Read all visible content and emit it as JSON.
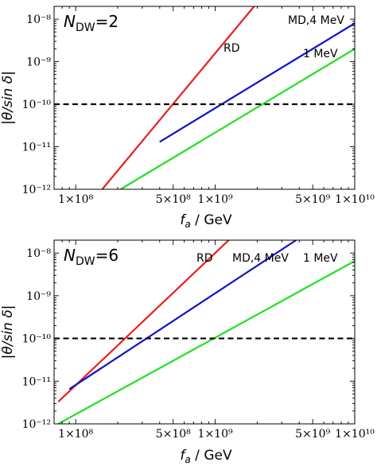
{
  "chart_data": [
    {
      "type": "line",
      "panel_label": {
        "prefix": "N",
        "subscript": "DW",
        "suffix": "=2"
      },
      "xlabel": {
        "main": "f",
        "sub": "a",
        "rest": " / GeV"
      },
      "ylabel": "|θ/sin δ|",
      "x_scale": "log",
      "y_scale": "log",
      "xlim": [
        70000000.0,
        10000000000.0
      ],
      "ylim": [
        1e-12,
        2e-08
      ],
      "x_ticks": [
        {
          "value": 100000000.0,
          "label": "1×10⁸"
        },
        {
          "value": 500000000.0,
          "label": "5×10⁸"
        },
        {
          "value": 1000000000.0,
          "label": "1×10⁹"
        },
        {
          "value": 5000000000.0,
          "label": "5×10⁹"
        },
        {
          "value": 10000000000.0,
          "label": "1×10¹⁰"
        }
      ],
      "y_ticks": [
        {
          "value": 1e-12,
          "label": "10⁻¹²"
        },
        {
          "value": 1e-11,
          "label": "10⁻¹¹"
        },
        {
          "value": 1e-10,
          "label": "10⁻¹⁰"
        },
        {
          "value": 1e-09,
          "label": "10⁻⁹"
        },
        {
          "value": 1e-08,
          "label": "10⁻⁸"
        }
      ],
      "series": [
        {
          "name": "RD",
          "color": "#e8201d",
          "x": [
            155000000.0,
            1900000000.0
          ],
          "y": [
            1e-12,
            2e-08
          ]
        },
        {
          "name": "MD,4 MeV",
          "color": "#1212c8",
          "x": [
            400000000.0,
            10000000000.0
          ],
          "y": [
            1.3e-11,
            8e-09
          ]
        },
        {
          "name": "1 MeV",
          "color": "#22e022",
          "x": [
            210000000.0,
            10000000000.0
          ],
          "y": [
            1e-12,
            2e-09
          ]
        }
      ],
      "reference_line": {
        "y": 1e-10,
        "style": "dashed",
        "color": "#000000"
      },
      "annotations": [
        {
          "text": "RD",
          "series": "RD"
        },
        {
          "text": "MD,4 MeV",
          "series": "MD,4 MeV"
        },
        {
          "text": "1 MeV",
          "series": "1 MeV"
        }
      ]
    },
    {
      "type": "line",
      "panel_label": {
        "prefix": "N",
        "subscript": "DW",
        "suffix": "=6"
      },
      "xlabel": {
        "main": "f",
        "sub": "a",
        "rest": " / GeV"
      },
      "ylabel": "|θ/sin δ|",
      "x_scale": "log",
      "y_scale": "log",
      "xlim": [
        70000000.0,
        10000000000.0
      ],
      "ylim": [
        1e-12,
        2e-08
      ],
      "x_ticks": [
        {
          "value": 100000000.0,
          "label": "1×10⁸"
        },
        {
          "value": 500000000.0,
          "label": "5×10⁸"
        },
        {
          "value": 1000000000.0,
          "label": "1×10⁹"
        },
        {
          "value": 5000000000.0,
          "label": "5×10⁹"
        },
        {
          "value": 10000000000.0,
          "label": "1×10¹⁰"
        }
      ],
      "y_ticks": [
        {
          "value": 1e-12,
          "label": "10⁻¹²"
        },
        {
          "value": 1e-11,
          "label": "10⁻¹¹"
        },
        {
          "value": 1e-10,
          "label": "10⁻¹⁰"
        },
        {
          "value": 1e-09,
          "label": "10⁻⁹"
        },
        {
          "value": 1e-08,
          "label": "10⁻⁸"
        }
      ],
      "series": [
        {
          "name": "RD",
          "color": "#e8201d",
          "x": [
            75000000.0,
            1250000000.0
          ],
          "y": [
            3.3e-12,
            2e-08
          ]
        },
        {
          "name": "MD,4 MeV",
          "color": "#1212c8",
          "x": [
            90000000.0,
            3800000000.0
          ],
          "y": [
            6.5e-12,
            2e-08
          ]
        },
        {
          "name": "1 MeV",
          "color": "#22e022",
          "x": [
            75000000.0,
            10000000000.0
          ],
          "y": [
            1e-12,
            6.5e-09
          ]
        }
      ],
      "reference_line": {
        "y": 1e-10,
        "style": "dashed",
        "color": "#000000"
      },
      "annotations": [
        {
          "text": "RD",
          "series": "RD"
        },
        {
          "text": "MD,4 MeV",
          "series": "MD,4 MeV"
        },
        {
          "text": "1 MeV",
          "series": "1 MeV"
        }
      ]
    }
  ]
}
